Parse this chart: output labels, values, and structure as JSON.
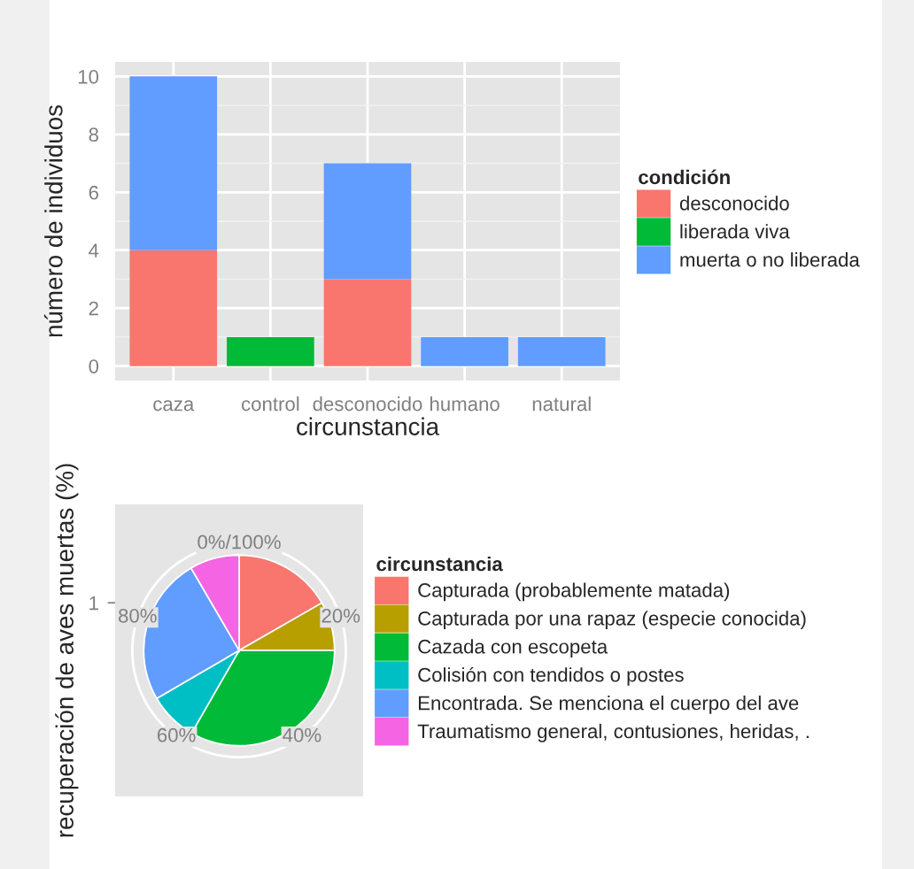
{
  "chart_data": [
    {
      "type": "bar",
      "stacked": true,
      "xlabel": "circunstancia",
      "ylabel": "número de individuos",
      "legend_title": "condición",
      "legend": "right",
      "grid": true,
      "categories": [
        "caza",
        "control",
        "desconocido",
        "humano",
        "natural"
      ],
      "series": [
        {
          "name": "desconocido",
          "color": "#f8766d",
          "values": [
            4,
            null,
            3,
            null,
            null
          ]
        },
        {
          "name": "liberada viva",
          "color": "#00ba38",
          "values": [
            null,
            1,
            null,
            null,
            null
          ]
        },
        {
          "name": "muerta o no liberada",
          "color": "#619cff",
          "values": [
            6,
            null,
            4,
            1,
            1
          ]
        }
      ],
      "ylim": [
        -0.5,
        10.5
      ],
      "yticks": [
        0,
        2,
        4,
        6,
        8,
        10
      ]
    },
    {
      "type": "pie",
      "ylabel": "recuperación de aves muertas (%)",
      "legend_title": "circunstancia",
      "legend": "right",
      "grid": true,
      "categories": [
        "Capturada (probablemente matada)",
        "Capturada por una rapaz (especie conocida)",
        "Cazada con escopeta",
        "Colisión con tendidos o postes",
        "Encontrada. Se menciona el cuerpo del ave",
        "Traumatismo general, contusiones, heridas, ."
      ],
      "values": [
        16.7,
        8.3,
        33.3,
        8.3,
        25.0,
        8.4
      ],
      "colors": [
        "#f8766d",
        "#b79f00",
        "#00ba38",
        "#00bfc4",
        "#619cff",
        "#f564e3"
      ],
      "annotations": [
        "0%/100%",
        "20%",
        "40%",
        "60%",
        "80%",
        "1"
      ]
    }
  ]
}
